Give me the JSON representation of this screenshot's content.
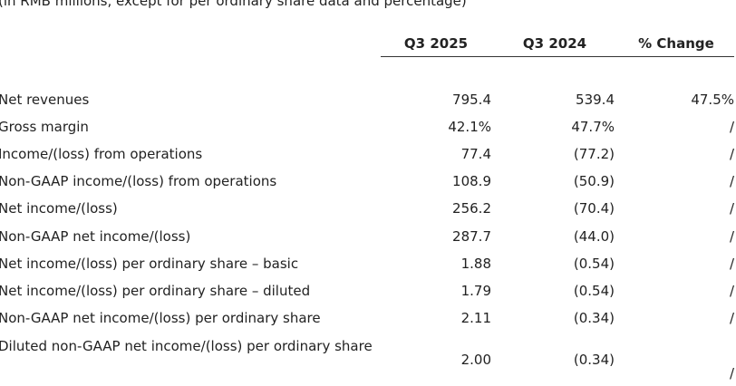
{
  "note": "(in RMB millions, except for per ordinary share data and percentage)",
  "table": {
    "columns": [
      "Q3 2025",
      "Q3 2024",
      "% Change"
    ],
    "rows": [
      {
        "label": "Net revenues",
        "values": [
          "795.4",
          "539.4",
          "47.5%"
        ]
      },
      {
        "label": "Gross margin",
        "values": [
          "42.1%",
          "47.7%",
          "/"
        ]
      },
      {
        "label": "Income/(loss) from operations",
        "values": [
          "77.4",
          "(77.2)",
          "/"
        ]
      },
      {
        "label": "Non-GAAP income/(loss) from operations",
        "values": [
          "108.9",
          "(50.9)",
          "/"
        ]
      },
      {
        "label": "Net income/(loss)",
        "values": [
          "256.2",
          "(70.4)",
          "/"
        ]
      },
      {
        "label": "Non-GAAP net income/(loss)",
        "values": [
          "287.7",
          "(44.0)",
          "/"
        ]
      },
      {
        "label": "Net income/(loss) per ordinary share – basic",
        "values": [
          "1.88",
          "(0.54)",
          "/"
        ]
      },
      {
        "label": "Net income/(loss) per ordinary share – diluted",
        "values": [
          "1.79",
          "(0.54)",
          "/"
        ]
      },
      {
        "label": "Non-GAAP net income/(loss) per ordinary share",
        "values": [
          "2.11",
          "(0.34)",
          "/"
        ]
      },
      {
        "label": "Diluted non-GAAP net income/(loss) per ordinary share",
        "values": [
          "2.00",
          "(0.34)",
          "/"
        ]
      }
    ]
  }
}
